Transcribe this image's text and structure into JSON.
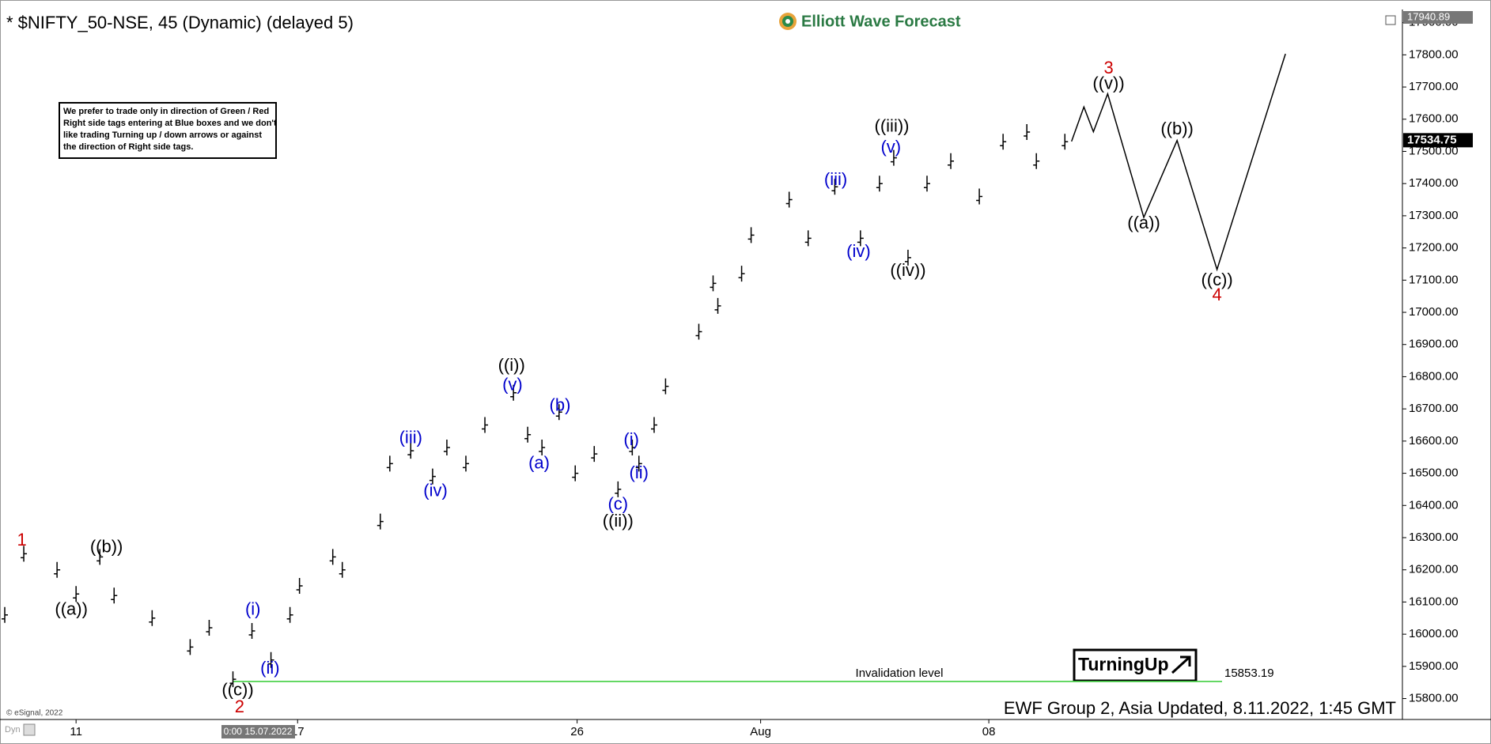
{
  "chart_data": {
    "type": "bar-path",
    "title": "* $NIFTY_50-NSE, 45 (Dynamic) (delayed 5)",
    "brand": "Elliott Wave Forecast",
    "note": [
      "We prefer to trade only in direction of Green / Red",
      "Right side tags entering at Blue boxes and we don't",
      "like trading Turning up / down arrows or against",
      "the direction of Right side tags."
    ],
    "footer": "EWF Group 2, Asia Updated, 8.11.2022, 1:45 GMT",
    "copyright": "© eSignal, 2022",
    "cursor_date": "0:00 15.07.2022",
    "corner_label": "Dyn",
    "badge": "TurningUp",
    "xlim": [
      0,
      295
    ],
    "ylim": [
      15735,
      17940.89
    ],
    "top_price": 17940.89,
    "last_price": 17534.75,
    "xticks": [
      {
        "value": 16,
        "label": "11"
      },
      {
        "value": 62.6,
        "label": "17"
      },
      {
        "value": 121.4,
        "label": "26"
      },
      {
        "value": 160,
        "label": "Aug"
      },
      {
        "value": 208,
        "label": "08"
      }
    ],
    "yticks": [
      {
        "value": 15800,
        "label": "15800.00"
      },
      {
        "value": 15900,
        "label": "15900.00"
      },
      {
        "value": 16000,
        "label": "16000.00"
      },
      {
        "value": 16100,
        "label": "16100.00"
      },
      {
        "value": 16200,
        "label": "16200.00"
      },
      {
        "value": 16300,
        "label": "16300.00"
      },
      {
        "value": 16400,
        "label": "16400.00"
      },
      {
        "value": 16500,
        "label": "16500.00"
      },
      {
        "value": 16600,
        "label": "16600.00"
      },
      {
        "value": 16700,
        "label": "16700.00"
      },
      {
        "value": 16800,
        "label": "16800.00"
      },
      {
        "value": 16900,
        "label": "16900.00"
      },
      {
        "value": 17000,
        "label": "17000.00"
      },
      {
        "value": 17100,
        "label": "17100.00"
      },
      {
        "value": 17200,
        "label": "17200.00"
      },
      {
        "value": 17300,
        "label": "17300.00"
      },
      {
        "value": 17400,
        "label": "17400.00"
      },
      {
        "value": 17500,
        "label": "17500.00"
      },
      {
        "value": 17600,
        "label": "17600.00"
      },
      {
        "value": 17700,
        "label": "17700.00"
      },
      {
        "value": 17800,
        "label": "17800.00"
      },
      {
        "value": 17900,
        "label": "17900.00"
      }
    ],
    "series": [
      {
        "name": "Price",
        "color": "#000000",
        "x": [
          1,
          5,
          12,
          16,
          21,
          24,
          32,
          40,
          44,
          49,
          53,
          57,
          61,
          63,
          70,
          72,
          80,
          82,
          86.4,
          91,
          94,
          98,
          102,
          108,
          111,
          114,
          117.6,
          121,
          125,
          130,
          133,
          134.4,
          137.6,
          140,
          147,
          150,
          151,
          156,
          158,
          166,
          170,
          175.6,
          181,
          185,
          188,
          191,
          195,
          200,
          206,
          211,
          216,
          218,
          224
        ],
        "values": [
          16060,
          16250,
          16200,
          16125,
          16240,
          16120,
          16050,
          15960,
          16020,
          15860,
          16010,
          15920,
          16060,
          16150,
          16240,
          16200,
          16350,
          16530,
          16570,
          16490,
          16580,
          16530,
          16650,
          16750,
          16620,
          16580,
          16690,
          16500,
          16560,
          16450,
          16580,
          16530,
          16650,
          16770,
          16940,
          17090,
          17020,
          17120,
          17240,
          17350,
          17230,
          17390,
          17230,
          17400,
          17480,
          17170,
          17400,
          17470,
          17360,
          17530,
          17560,
          17470,
          17530
        ]
      },
      {
        "name": "Projection",
        "color": "#000000",
        "x": [
          225.4,
          228,
          230,
          233,
          240.6,
          247.6,
          256,
          270.4
        ],
        "values": [
          17531,
          17638,
          17561,
          17679,
          17295,
          17534,
          17133,
          17803
        ]
      }
    ],
    "invalidation": {
      "label": "Invalidation level",
      "value": 15853.19,
      "color": "#33cc33"
    },
    "annotations": [
      {
        "text": "1",
        "x": 4.6,
        "y": 16290,
        "color": "#cc0000"
      },
      {
        "text": "((a))",
        "x": 15,
        "y": 16075,
        "color": "#000000"
      },
      {
        "text": "((b))",
        "x": 22.4,
        "y": 16269,
        "color": "#000000"
      },
      {
        "text": "((c))",
        "x": 50,
        "y": 15824,
        "color": "#000000"
      },
      {
        "text": "2",
        "x": 50.4,
        "y": 15771,
        "color": "#cc0000"
      },
      {
        "text": "(i)",
        "x": 53.2,
        "y": 16075,
        "color": "#0000cc"
      },
      {
        "text": "(ii)",
        "x": 56.8,
        "y": 15892,
        "color": "#0000cc"
      },
      {
        "text": "(iii)",
        "x": 86.4,
        "y": 16608,
        "color": "#0000cc"
      },
      {
        "text": "(iv)",
        "x": 91.6,
        "y": 16443,
        "color": "#0000cc"
      },
      {
        "text": "(v)",
        "x": 107.8,
        "y": 16773,
        "color": "#0000cc"
      },
      {
        "text": "((i))",
        "x": 107.6,
        "y": 16832,
        "color": "#000000"
      },
      {
        "text": "(a)",
        "x": 113.4,
        "y": 16529,
        "color": "#0000cc"
      },
      {
        "text": "(b)",
        "x": 117.8,
        "y": 16709,
        "color": "#0000cc"
      },
      {
        "text": "(c)",
        "x": 130,
        "y": 16402,
        "color": "#0000cc"
      },
      {
        "text": "((ii))",
        "x": 130,
        "y": 16349,
        "color": "#000000"
      },
      {
        "text": "(i)",
        "x": 132.8,
        "y": 16602,
        "color": "#0000cc"
      },
      {
        "text": "(ii)",
        "x": 134.4,
        "y": 16499,
        "color": "#0000cc"
      },
      {
        "text": "(iii)",
        "x": 175.8,
        "y": 17410,
        "color": "#0000cc"
      },
      {
        "text": "(iv)",
        "x": 180.6,
        "y": 17186,
        "color": "#0000cc"
      },
      {
        "text": "(v)",
        "x": 187.4,
        "y": 17511,
        "color": "#0000cc"
      },
      {
        "text": "((iii))",
        "x": 187.6,
        "y": 17576,
        "color": "#000000"
      },
      {
        "text": "((iv))",
        "x": 191,
        "y": 17127,
        "color": "#000000"
      },
      {
        "text": "3",
        "x": 233.2,
        "y": 17756,
        "color": "#cc0000"
      },
      {
        "text": "((v))",
        "x": 233.2,
        "y": 17708,
        "color": "#000000"
      },
      {
        "text": "((a))",
        "x": 240.6,
        "y": 17275,
        "color": "#000000"
      },
      {
        "text": "((b))",
        "x": 247.6,
        "y": 17567,
        "color": "#000000"
      },
      {
        "text": "((c))",
        "x": 256,
        "y": 17098,
        "color": "#000000"
      },
      {
        "text": "4",
        "x": 256,
        "y": 17051,
        "color": "#cc0000"
      }
    ]
  }
}
